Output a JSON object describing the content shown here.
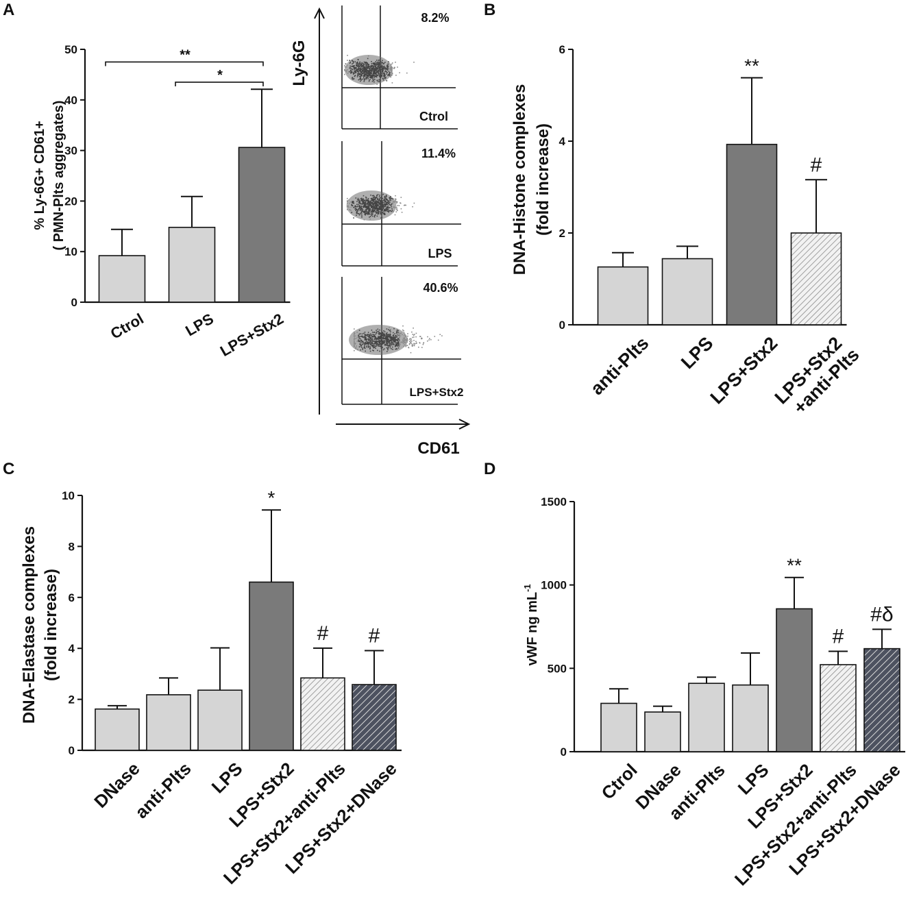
{
  "colors": {
    "axis": "#111111",
    "ctrl_bar": "#d5d5d5",
    "stx_bar": "#7a7a7a",
    "hatch_light": "#dcdcdc",
    "hatch_dark": "#4d5260",
    "dots": "#555555"
  },
  "chart_data": [
    {
      "panel": "A",
      "type": "bar",
      "categories": [
        "Ctrol",
        "LPS",
        "LPS+Stx2"
      ],
      "values": [
        9.2,
        14.8,
        30.6
      ],
      "errors": [
        5.2,
        6.1,
        11.5
      ],
      "fills": [
        "light",
        "light",
        "dark"
      ],
      "ylabel": [
        "% Ly-6G+ CD61+",
        "( PMN-Plts aggregates)"
      ],
      "ylim": [
        0,
        50
      ],
      "yticks": [
        0,
        10,
        20,
        30,
        40,
        50
      ],
      "markers": [
        "",
        "",
        ""
      ],
      "brackets": [
        {
          "from": 0,
          "to": 2,
          "label": "**",
          "level": 47.5
        },
        {
          "from": 1,
          "to": 2,
          "label": "*",
          "level": 43.5
        }
      ]
    },
    {
      "panel": "A-flow",
      "type": "scatter",
      "xlabel": "CD61",
      "ylabel": "Ly-6G",
      "plots": [
        {
          "label": "Ctrol",
          "percent": "8.2%",
          "spread": 0.35
        },
        {
          "label": "LPS",
          "percent": "11.4%",
          "spread": 0.42
        },
        {
          "label": "LPS+Stx2",
          "percent": "40.6%",
          "spread": 0.75
        }
      ]
    },
    {
      "panel": "B",
      "type": "bar",
      "categories": [
        "anti-Plts",
        "LPS",
        "LPS+Stx2",
        "LPS+Stx2\n+anti-Plts"
      ],
      "values": [
        1.26,
        1.44,
        3.93,
        2.0
      ],
      "errors": [
        0.31,
        0.27,
        1.45,
        1.16
      ],
      "fills": [
        "light",
        "light",
        "dark",
        "hatch-light"
      ],
      "ylabel": [
        "DNA-Histone complexes",
        "(fold increase)"
      ],
      "ylim": [
        0,
        6
      ],
      "yticks": [
        0,
        2,
        4,
        6
      ],
      "markers": [
        "",
        "",
        "**",
        "#"
      ]
    },
    {
      "panel": "C",
      "type": "bar",
      "categories": [
        "DNase",
        "anti-Plts",
        "LPS",
        "LPS+Stx2",
        "LPS+Stx2+anti-Plts",
        "LPS+Stx2+DNase"
      ],
      "values": [
        1.62,
        2.18,
        2.36,
        6.6,
        2.84,
        2.58
      ],
      "errors": [
        0.13,
        0.66,
        1.66,
        2.83,
        1.17,
        1.33
      ],
      "fills": [
        "light",
        "light",
        "light",
        "dark",
        "hatch-light",
        "hatch-dark"
      ],
      "ylabel": [
        "DNA-Elastase complexes",
        "(fold increase)"
      ],
      "ylim": [
        0,
        10
      ],
      "yticks": [
        0,
        2,
        4,
        6,
        8,
        10
      ],
      "markers": [
        "",
        "",
        "",
        "*",
        "#",
        "#"
      ]
    },
    {
      "panel": "D",
      "type": "bar",
      "categories": [
        "Ctrol",
        "DNase",
        "anti-Plts",
        "LPS",
        "LPS+Stx2",
        "LPS+Stx2+anti-Plts",
        "LPS+Stx2+DNase"
      ],
      "values": [
        290,
        238,
        410,
        400,
        857,
        522,
        618
      ],
      "errors": [
        87,
        35,
        37,
        192,
        188,
        80,
        116
      ],
      "fills": [
        "light",
        "light",
        "light",
        "light",
        "dark",
        "hatch-light",
        "hatch-dark"
      ],
      "ylabel": [
        "vWF ng mL",
        "-1"
      ],
      "ylim": [
        0,
        1500
      ],
      "yticks": [
        0,
        500,
        1000,
        1500
      ],
      "markers": [
        "",
        "",
        "",
        "",
        "**",
        "#",
        "#δ"
      ]
    }
  ],
  "panel_labels": [
    "A",
    "B",
    "C",
    "D"
  ]
}
